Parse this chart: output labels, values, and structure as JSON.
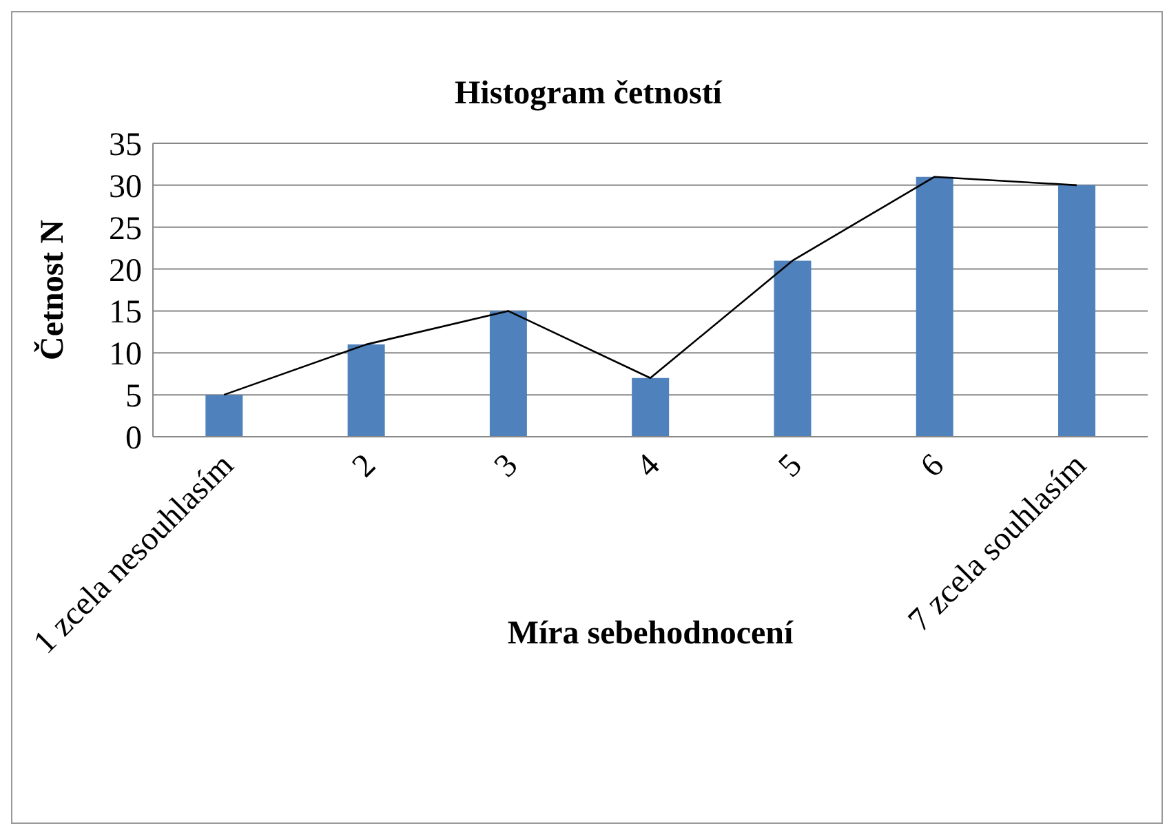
{
  "chart_data": {
    "type": "bar",
    "title": "Histogram četností",
    "xlabel": "Míra sebehodnocení",
    "ylabel": "Četnost N",
    "categories": [
      "1 zcela nesouhlasím",
      "2",
      "3",
      "4",
      "5",
      "6",
      "7 zcela souhlasím"
    ],
    "series": [
      {
        "color": "#4f81bd",
        "values": [
          5,
          11,
          15,
          7,
          21,
          31,
          30
        ]
      },
      {
        "type": "line",
        "color": "#000000",
        "values": [
          5,
          11,
          15,
          7,
          21,
          31,
          30
        ]
      }
    ],
    "ylim": [
      0,
      35
    ],
    "yticks": [
      0,
      5,
      10,
      15,
      20,
      25,
      30,
      35
    ],
    "grid": "y",
    "legend": false,
    "marker": "none",
    "line_style": "solid"
  }
}
